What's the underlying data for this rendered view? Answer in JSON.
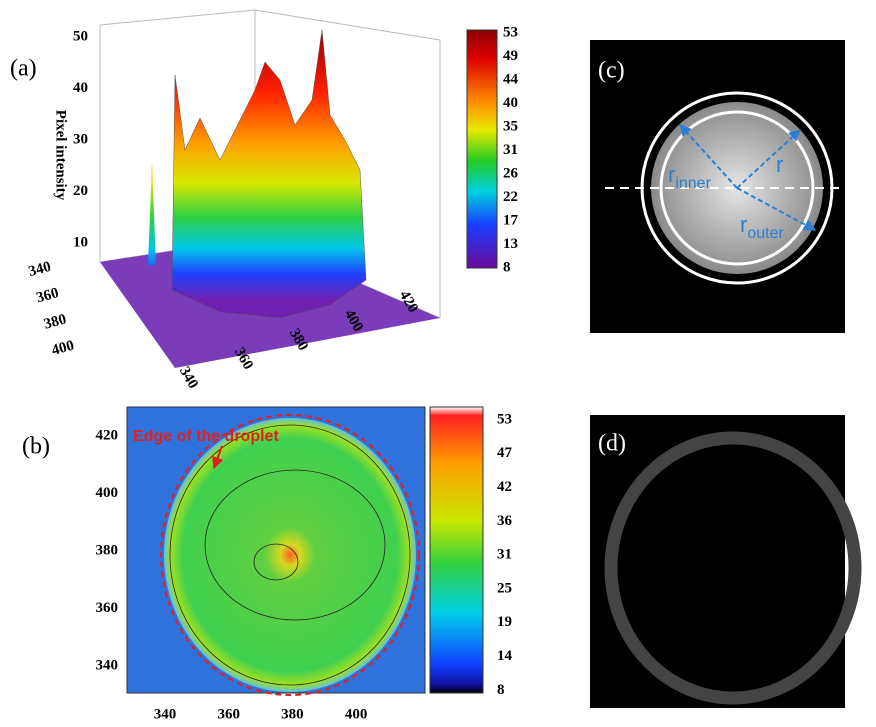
{
  "panel_a": {
    "label": "(a)",
    "z_axis_label": "Pixel intensity",
    "z_ticks": [
      10,
      20,
      30,
      40,
      50
    ],
    "y_ticks": [
      340,
      360,
      380,
      400
    ],
    "x_ticks": [
      340,
      360,
      380,
      400,
      420
    ],
    "colorbar_ticks": [
      53,
      49,
      44,
      40,
      35,
      31,
      26,
      22,
      17,
      13,
      8
    ]
  },
  "panel_b": {
    "label": "(b)",
    "annotation": "Edge of the droplet",
    "y_ticks": [
      340,
      360,
      380,
      400,
      420
    ],
    "x_ticks": [
      340,
      360,
      380,
      400
    ],
    "colorbar_ticks": [
      53,
      47,
      42,
      36,
      31,
      25,
      19,
      14,
      8
    ]
  },
  "panel_c": {
    "label": "(c)",
    "labels": [
      {
        "base": "r",
        "sub": "inner"
      },
      {
        "base": "r"
      },
      {
        "base": "r",
        "sub": "outer"
      }
    ]
  },
  "panel_d": {
    "label": "(d)"
  }
}
